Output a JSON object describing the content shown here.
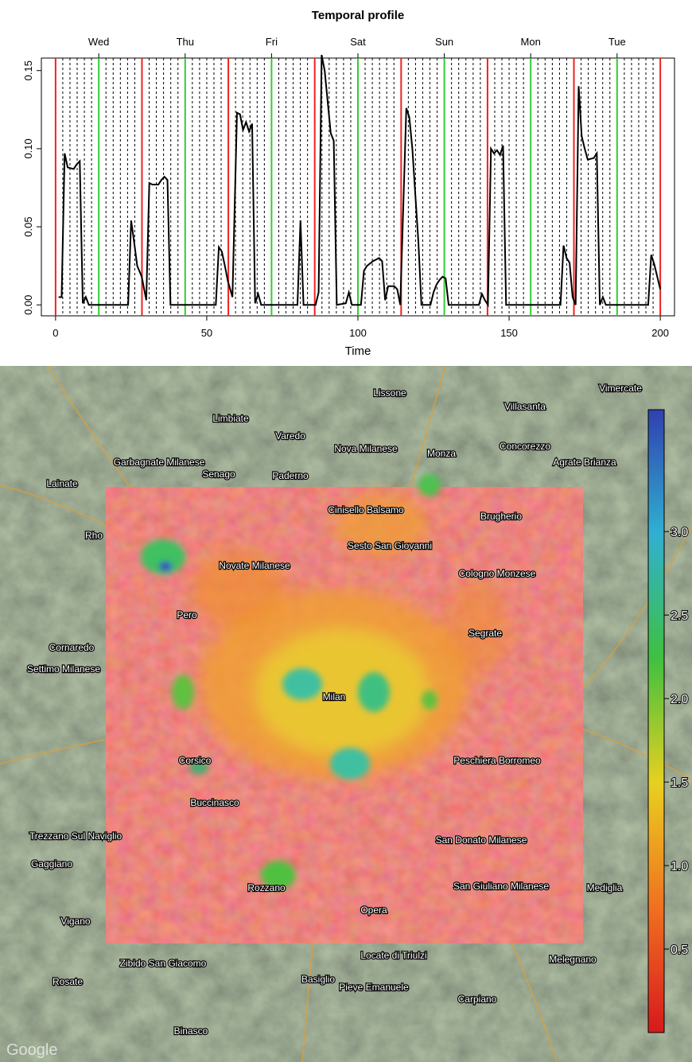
{
  "chart_data": {
    "type": "line",
    "title": "Temporal profile",
    "xlabel": "Time",
    "x": [
      1,
      2,
      3,
      4,
      6,
      7,
      8,
      9,
      10,
      11,
      24,
      25,
      26,
      27,
      28.5,
      30,
      31,
      32,
      34,
      35,
      36,
      37,
      38,
      53,
      54,
      55,
      56,
      57,
      58.5,
      60,
      61,
      62,
      63,
      64,
      65,
      66,
      67,
      68,
      80,
      81,
      82,
      86,
      87,
      88,
      89,
      90,
      91,
      92,
      93,
      96,
      97,
      98,
      101,
      102,
      103,
      105,
      107,
      108,
      109,
      110,
      112,
      113,
      114,
      116,
      117,
      118,
      119,
      120,
      121,
      124,
      125,
      126,
      127,
      128,
      129,
      130,
      140,
      141,
      142,
      143,
      144,
      145,
      146,
      147,
      148,
      149,
      167,
      168,
      169,
      170,
      171,
      172,
      173,
      174,
      175,
      176,
      178,
      179,
      180,
      181,
      182,
      196,
      197,
      198,
      199,
      200
    ],
    "values": [
      0.005,
      0.005,
      0.097,
      0.088,
      0.087,
      0.09,
      0.092,
      0.001,
      0.005,
      0,
      0,
      0.054,
      0.04,
      0.025,
      0.018,
      0.003,
      0.078,
      0.077,
      0.077,
      0.08,
      0.082,
      0.08,
      0,
      0,
      0.037,
      0.034,
      0.025,
      0.015,
      0.005,
      0.123,
      0.122,
      0.112,
      0.117,
      0.111,
      0.116,
      0.001,
      0.007,
      0,
      0,
      0.054,
      0,
      0,
      0.008,
      0.16,
      0.15,
      0.13,
      0.11,
      0.105,
      0,
      0.001,
      0.008,
      0,
      0,
      0.022,
      0.025,
      0.028,
      0.03,
      0.028,
      0.003,
      0.012,
      0.012,
      0.01,
      0,
      0.126,
      0.12,
      0.1,
      0.07,
      0.04,
      0,
      0,
      0.008,
      0.013,
      0.016,
      0.018,
      0.017,
      0,
      0,
      0.007,
      0.003,
      0,
      0.1,
      0.097,
      0.099,
      0.096,
      0.102,
      0,
      0,
      0.038,
      0.03,
      0.027,
      0.005,
      0,
      0.14,
      0.108,
      0.1,
      0.093,
      0.094,
      0.097,
      0,
      0.005,
      0,
      0,
      0.032,
      0.026,
      0.018,
      0.01
    ],
    "color": "#000000",
    "xlim": [
      -4.7,
      204.7
    ],
    "xticks": [
      0,
      50,
      100,
      150,
      200
    ],
    "ylim": [
      -0.007,
      0.158
    ],
    "yticks": [
      {
        "value": 0,
        "label": "0.00"
      },
      {
        "value": 0.05,
        "label": "0.05"
      },
      {
        "value": 0.1,
        "label": "0.10"
      },
      {
        "value": 0.15,
        "label": "0.15"
      }
    ],
    "x2ticks": [
      {
        "value": 14.29,
        "label": "Wed"
      },
      {
        "value": 42.86,
        "label": "Thu"
      },
      {
        "value": 71.43,
        "label": "Fri"
      },
      {
        "value": 100,
        "label": "Sat"
      },
      {
        "value": 128.57,
        "label": "Sun"
      },
      {
        "value": 157.14,
        "label": "Mon"
      },
      {
        "value": 185.71,
        "label": "Tue"
      }
    ],
    "x2tick_line_color": "#33cc33",
    "reference_lines": [
      {
        "color": "#ee2222",
        "style": "solid",
        "x": [
          0,
          28.57,
          57.14,
          85.71,
          114.29,
          142.86,
          171.43,
          200
        ]
      },
      {
        "color": "#000000",
        "style": "dashed",
        "x": [
          2.38,
          4.76,
          7.14,
          9.52,
          11.9,
          16.67,
          19.05,
          21.43,
          23.81,
          26.19,
          30.95,
          33.33,
          35.71,
          38.1,
          40.48,
          45.24,
          47.62,
          50,
          52.38,
          54.76,
          59.52,
          61.9,
          64.29,
          66.67,
          69.05,
          73.81,
          76.19,
          78.57,
          80.95,
          83.33,
          88.1,
          90.48,
          92.86,
          95.24,
          97.62,
          102.38,
          104.76,
          107.14,
          109.52,
          111.9,
          116.67,
          119.05,
          121.43,
          123.81,
          126.19,
          130.95,
          133.33,
          135.71,
          138.1,
          140.48,
          145.24,
          147.62,
          150,
          152.38,
          154.76,
          159.52,
          161.9,
          164.29,
          166.67,
          169.05,
          173.81,
          176.19,
          178.57,
          180.95,
          183.33,
          188.1,
          190.48,
          192.86,
          195.24,
          197.62
        ]
      }
    ]
  },
  "map": {
    "places": [
      "Vimercate",
      "Lissone",
      "Villasanta",
      "Limbiate",
      "Varedo",
      "Monza",
      "Concorezzo",
      "Nova Milanese",
      "Garbagnate Milanese",
      "Senago",
      "Paderno",
      "Agrate Brianza",
      "Lainate",
      "Rho",
      "Cinisello Balsamo",
      "Sesto San Giovanni",
      "Novate Milanese",
      "Brugherio",
      "Cologno Monzese",
      "Pero",
      "Milan",
      "Segrate",
      "Cornaredo",
      "Settimo Milanese",
      "Corsico",
      "Buccinasco",
      "Trezzano Sul Naviglio",
      "Peschiera Borromeo",
      "San Donato Milanese",
      "Rozzano",
      "San Giuliano Milanese",
      "Opera",
      "Locate di Triulzi",
      "Melegnano",
      "Binasco",
      "Zibido San Giacomo",
      "Basiglio",
      "Pieve Emanuele",
      "Carpiano",
      "Rosate",
      "Vigano",
      "Gaggiano",
      "Mediglia"
    ],
    "attribution": "Google",
    "colorbar": {
      "colors": [
        "#d7191c",
        "#f07020",
        "#e8d020",
        "#40c040",
        "#30b0d0",
        "#3040b0"
      ],
      "clim": [
        0,
        3.73
      ],
      "ticks": [
        0.5,
        {
          "value": 1,
          "label": "1.0"
        },
        1.5,
        {
          "value": 2,
          "label": "2.0"
        },
        2.5,
        {
          "value": 3,
          "label": "3.0"
        }
      ]
    }
  }
}
